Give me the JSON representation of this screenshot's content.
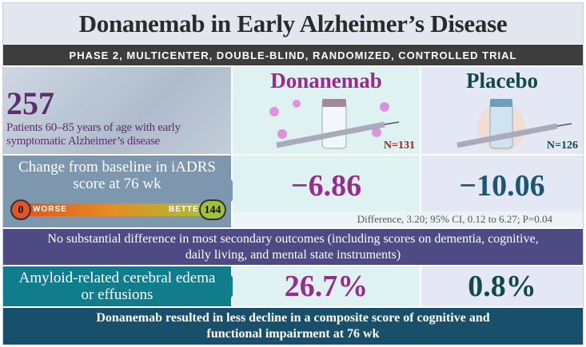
{
  "title": "Donanemab in Early Alzheimer’s Disease",
  "banner": "PHASE 2, MULTICENTER, DOUBLE-BLIND, RANDOMIZED, CONTROLLED TRIAL",
  "population": {
    "count": "257",
    "description": "Patients 60–85 years of age with early symptomatic Alzheimer’s disease"
  },
  "arms": [
    {
      "name": "Donanemab",
      "n": "N=131",
      "color": "#9b2a8f"
    },
    {
      "name": "Placebo",
      "n": "N=126",
      "color": "#124a4a"
    }
  ],
  "primary": {
    "label": "Change from baseline in iADRS score at 76 wk",
    "scale": {
      "min": "0",
      "max": "144",
      "worse": "WORSE",
      "better": "BETTER"
    },
    "donanemab": "−6.86",
    "placebo": "−10.06",
    "difference": "Difference, 3.20; 95% CI, 0.12 to 6.27; P=0.04"
  },
  "secondary": "No substantial difference in most secondary outcomes (including scores on dementia, cognitive, daily living, and mental state instruments)",
  "aria": {
    "label": "Amyloid-related cerebral edema or effusions",
    "donanemab": "26.7%",
    "placebo": "0.8%"
  },
  "conclusion": "Donanemab resulted in less decline in a composite score of cognitive and functional impairment at 76 wk"
}
